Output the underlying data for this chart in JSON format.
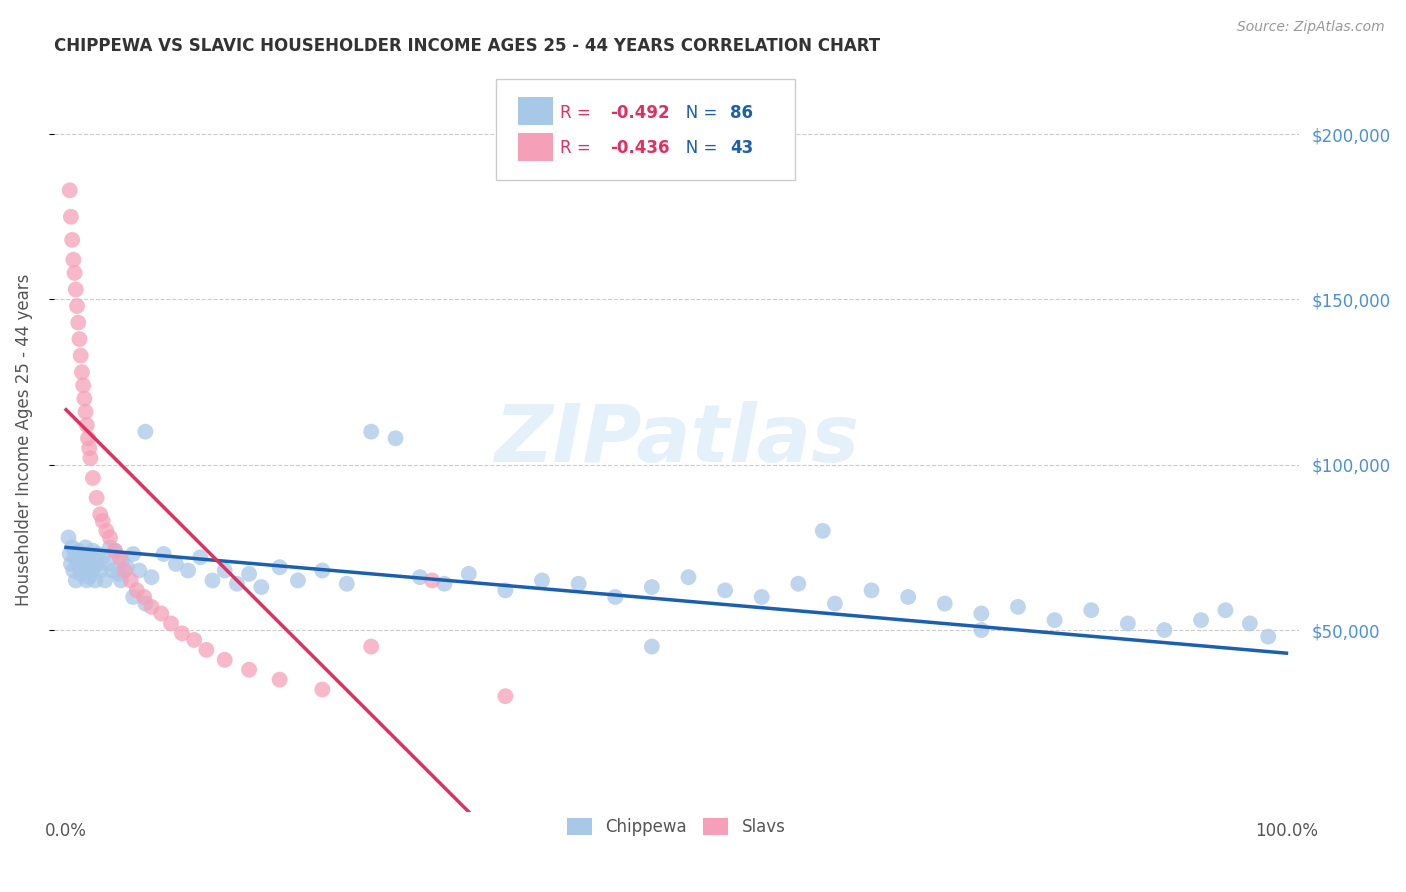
{
  "title": "CHIPPEWA VS SLAVIC HOUSEHOLDER INCOME AGES 25 - 44 YEARS CORRELATION CHART",
  "source": "Source: ZipAtlas.com",
  "ylabel": "Householder Income Ages 25 - 44 years",
  "y_tick_values": [
    50000,
    100000,
    150000,
    200000
  ],
  "y_tick_labels": [
    "$50,000",
    "$100,000",
    "$150,000",
    "$200,000"
  ],
  "ylim": [
    -5000,
    220000
  ],
  "xlim": [
    -0.01,
    1.01
  ],
  "background_color": "#ffffff",
  "grid_color": "#cccccc",
  "chippewa_color": "#a8c8e8",
  "slavic_color": "#f5a0b8",
  "chippewa_line_color": "#1a5fb0",
  "slavic_line_color": "#e03060",
  "legend_R_chippewa": "R = -0.492",
  "legend_N_chippewa": "N = 86",
  "legend_R_slavic": "R = -0.436",
  "legend_N_slavic": "N = 43",
  "watermark": "ZIPatlas",
  "chippewa_x": [
    0.002,
    0.003,
    0.004,
    0.005,
    0.006,
    0.007,
    0.008,
    0.009,
    0.01,
    0.011,
    0.012,
    0.013,
    0.014,
    0.015,
    0.016,
    0.017,
    0.018,
    0.019,
    0.02,
    0.021,
    0.022,
    0.023,
    0.024,
    0.025,
    0.026,
    0.028,
    0.03,
    0.032,
    0.034,
    0.036,
    0.038,
    0.04,
    0.043,
    0.046,
    0.05,
    0.055,
    0.06,
    0.065,
    0.07,
    0.08,
    0.09,
    0.1,
    0.11,
    0.12,
    0.13,
    0.14,
    0.15,
    0.16,
    0.175,
    0.19,
    0.21,
    0.23,
    0.25,
    0.27,
    0.29,
    0.31,
    0.33,
    0.36,
    0.39,
    0.42,
    0.45,
    0.48,
    0.51,
    0.54,
    0.57,
    0.6,
    0.63,
    0.66,
    0.69,
    0.72,
    0.75,
    0.78,
    0.81,
    0.84,
    0.87,
    0.9,
    0.93,
    0.95,
    0.97,
    0.985,
    0.045,
    0.055,
    0.065,
    0.48,
    0.62,
    0.75
  ],
  "chippewa_y": [
    78000,
    73000,
    70000,
    75000,
    68000,
    72000,
    65000,
    71000,
    74000,
    69000,
    67000,
    73000,
    70000,
    68000,
    75000,
    65000,
    71000,
    66000,
    72000,
    68000,
    74000,
    69000,
    65000,
    70000,
    73000,
    68000,
    72000,
    65000,
    70000,
    75000,
    68000,
    74000,
    67000,
    71000,
    69000,
    73000,
    68000,
    110000,
    66000,
    73000,
    70000,
    68000,
    72000,
    65000,
    68000,
    64000,
    67000,
    63000,
    69000,
    65000,
    68000,
    64000,
    110000,
    108000,
    66000,
    64000,
    67000,
    62000,
    65000,
    64000,
    60000,
    63000,
    66000,
    62000,
    60000,
    64000,
    58000,
    62000,
    60000,
    58000,
    55000,
    57000,
    53000,
    56000,
    52000,
    50000,
    53000,
    56000,
    52000,
    48000,
    65000,
    60000,
    58000,
    45000,
    80000,
    50000
  ],
  "slavic_x": [
    0.003,
    0.004,
    0.005,
    0.006,
    0.007,
    0.008,
    0.009,
    0.01,
    0.011,
    0.012,
    0.013,
    0.014,
    0.015,
    0.016,
    0.017,
    0.018,
    0.019,
    0.02,
    0.022,
    0.025,
    0.028,
    0.03,
    0.033,
    0.036,
    0.04,
    0.044,
    0.048,
    0.053,
    0.058,
    0.064,
    0.07,
    0.078,
    0.086,
    0.095,
    0.105,
    0.115,
    0.13,
    0.15,
    0.175,
    0.21,
    0.25,
    0.3,
    0.36
  ],
  "slavic_y": [
    183000,
    175000,
    168000,
    162000,
    158000,
    153000,
    148000,
    143000,
    138000,
    133000,
    128000,
    124000,
    120000,
    116000,
    112000,
    108000,
    105000,
    102000,
    96000,
    90000,
    85000,
    83000,
    80000,
    78000,
    74000,
    72000,
    68000,
    65000,
    62000,
    60000,
    57000,
    55000,
    52000,
    49000,
    47000,
    44000,
    41000,
    38000,
    35000,
    32000,
    45000,
    65000,
    30000
  ]
}
